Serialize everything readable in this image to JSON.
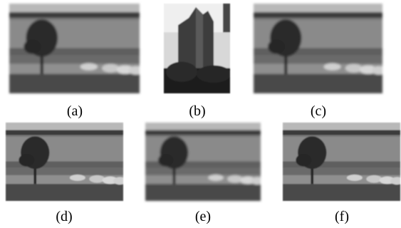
{
  "figures": [
    {
      "caption": "(a)"
    },
    {
      "caption": "(b)"
    },
    {
      "caption": "(c)"
    },
    {
      "caption": "(d)"
    },
    {
      "caption": "(e)"
    },
    {
      "caption": "(f)"
    }
  ]
}
